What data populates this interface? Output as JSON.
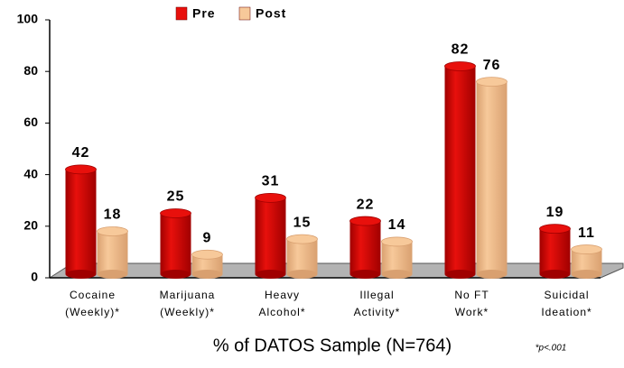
{
  "chart_data": {
    "type": "bar",
    "categories": [
      "Cocaine\n(Weekly)*",
      "Marijuana\n(Weekly)*",
      "Heavy\nAlcohol*",
      "Illegal\nActivity*",
      "No FT\nWork*",
      "Suicidal\nIdeation*"
    ],
    "series": [
      {
        "name": "Pre",
        "color": "#e8100c",
        "values": [
          42,
          25,
          31,
          22,
          82,
          19
        ]
      },
      {
        "name": "Post",
        "color": "#f7c99a",
        "values": [
          18,
          9,
          15,
          14,
          76,
          11
        ]
      }
    ],
    "ylim": [
      0,
      100
    ],
    "yticks": [
      0,
      20,
      40,
      60,
      80,
      100
    ],
    "x_label": "% of DATOS Sample (N=764)",
    "annotation": "*p<.001"
  }
}
